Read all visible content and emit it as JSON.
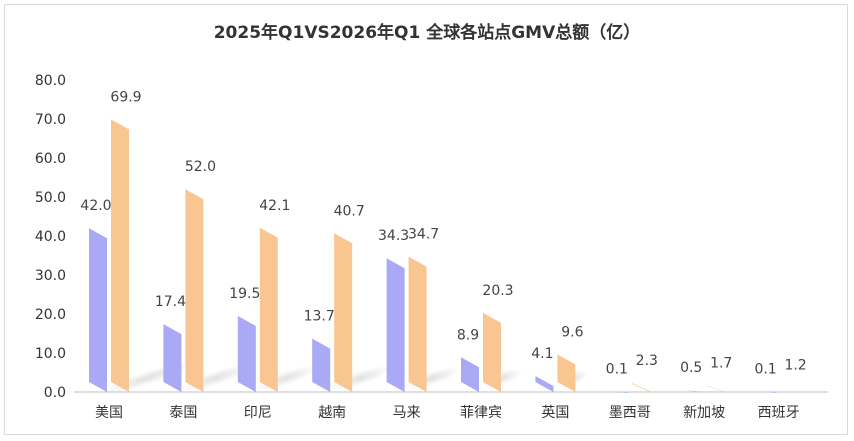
{
  "chart_data": {
    "type": "bar",
    "title": "2025年Q1VS2026年Q1  全球各站点GMV总额（亿）",
    "xlabel": "",
    "ylabel": "",
    "ylim": [
      0,
      80
    ],
    "yticks": [
      "0.0",
      "10.0",
      "20.0",
      "30.0",
      "40.0",
      "50.0",
      "60.0",
      "70.0",
      "80.0"
    ],
    "grid": false,
    "legend": "none",
    "categories": [
      "美国",
      "泰国",
      "印尼",
      "越南",
      "马来",
      "菲律宾",
      "英国",
      "墨西哥",
      "新加坡",
      "西班牙"
    ],
    "series": [
      {
        "color": "#aaa9f5",
        "values": [
          42.0,
          17.4,
          19.5,
          13.7,
          34.3,
          8.9,
          4.1,
          0.1,
          0.5,
          0.1
        ],
        "labels": [
          "42.0",
          "17.4",
          "19.5",
          "13.7",
          "34.3",
          "8.9",
          "4.1",
          "0.1",
          "0.5",
          "0.1"
        ]
      },
      {
        "color": "#f9c692",
        "values": [
          69.9,
          52.0,
          42.1,
          40.7,
          34.7,
          20.3,
          9.6,
          2.3,
          1.7,
          1.2
        ],
        "labels": [
          "69.9",
          "52.0",
          "42.1",
          "40.7",
          "34.7",
          "20.3",
          "9.6",
          "2.3",
          "1.7",
          "1.2"
        ]
      }
    ]
  }
}
